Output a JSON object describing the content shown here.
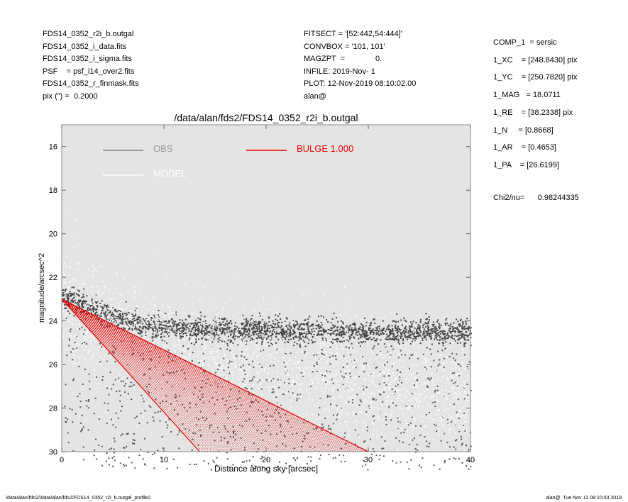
{
  "header_left": [
    "FDS14_0352_r2i_b.outgal",
    "FDS14_0352_i_data.fits",
    "FDS14_0352_i_sigma.fits",
    "PSF    = psf_i14_over2.fits",
    "FDS14_0352_r_finmask.fits",
    "pix (\") =  0.2000"
  ],
  "header_mid": [
    "FITSECT = '[52:442,54:444]'",
    "CONVBOX = '101, 101'",
    "MAGZPT  =              0.",
    "INFILE: 2019-Nov- 1",
    "PLOT: 12-Nov-2019 08:10:02.00",
    "alan@"
  ],
  "header_right": [
    "COMP_1  = sersic",
    "1_XC    = [248.8430] pix",
    "1_YC    = [250.7820] pix",
    "1_MAG   = 18.0711",
    "1_RE    = [38.2338] pix",
    "1_N     = [0.8668]",
    "1_AR    = [0.4653]",
    "1_PA    = [26.6199]"
  ],
  "chi2": {
    "label": "Chi2/nu=",
    "value": "0.98244335"
  },
  "footer": {
    "left": "/data/alan/fds2//data/alan/fds2/FDS14_0352_r2i_b.outgal_profile2",
    "right": "alan@  Tue Nov 12 08:10:03 2019"
  },
  "chart_data": {
    "type": "scatter",
    "title": "/data/alan/fds2/FDS14_0352_r2i_b.outgal",
    "xlabel": "Distance along sky [arcsec]",
    "ylabel": "magnitude/arcsec^2",
    "xlim": [
      0,
      40
    ],
    "ylim": [
      30,
      15
    ],
    "y_inverted": true,
    "xticks": [
      0,
      10,
      20,
      30,
      40
    ],
    "yticks": [
      16,
      18,
      20,
      22,
      24,
      26,
      28,
      30
    ],
    "grid": false,
    "background_color": "#e4e4e4",
    "legend": [
      {
        "name": "OBS",
        "color": "#888888",
        "position": "top-left"
      },
      {
        "name": "MODEL",
        "color": "#ffffff",
        "position": "top-left"
      },
      {
        "name": "BULGE  1.000",
        "color": "#ee0000",
        "position": "top-center"
      }
    ],
    "series": [
      {
        "name": "OBS",
        "color": "#444444",
        "description_level": "surface brightness flattens near 24.5 beyond 10 arcsec",
        "profile": [
          [
            0,
            22.9
          ],
          [
            2,
            23.2
          ],
          [
            5,
            23.8
          ],
          [
            8,
            24.2
          ],
          [
            10,
            24.3
          ],
          [
            20,
            24.4
          ],
          [
            30,
            24.5
          ],
          [
            40,
            24.5
          ]
        ]
      },
      {
        "name": "MODEL",
        "color": "#ffffff",
        "profile": [
          [
            0,
            23.0
          ],
          [
            10,
            24.8
          ],
          [
            20,
            25.8
          ],
          [
            30,
            26.5
          ],
          [
            40,
            27.0
          ]
        ]
      },
      {
        "name": "BULGE  1.000",
        "color": "#ee0000",
        "upper_edge": [
          [
            0,
            23.0
          ],
          [
            30,
            30.0
          ]
        ],
        "lower_edge": [
          [
            0,
            23.0
          ],
          [
            13.5,
            30.0
          ]
        ]
      }
    ]
  }
}
